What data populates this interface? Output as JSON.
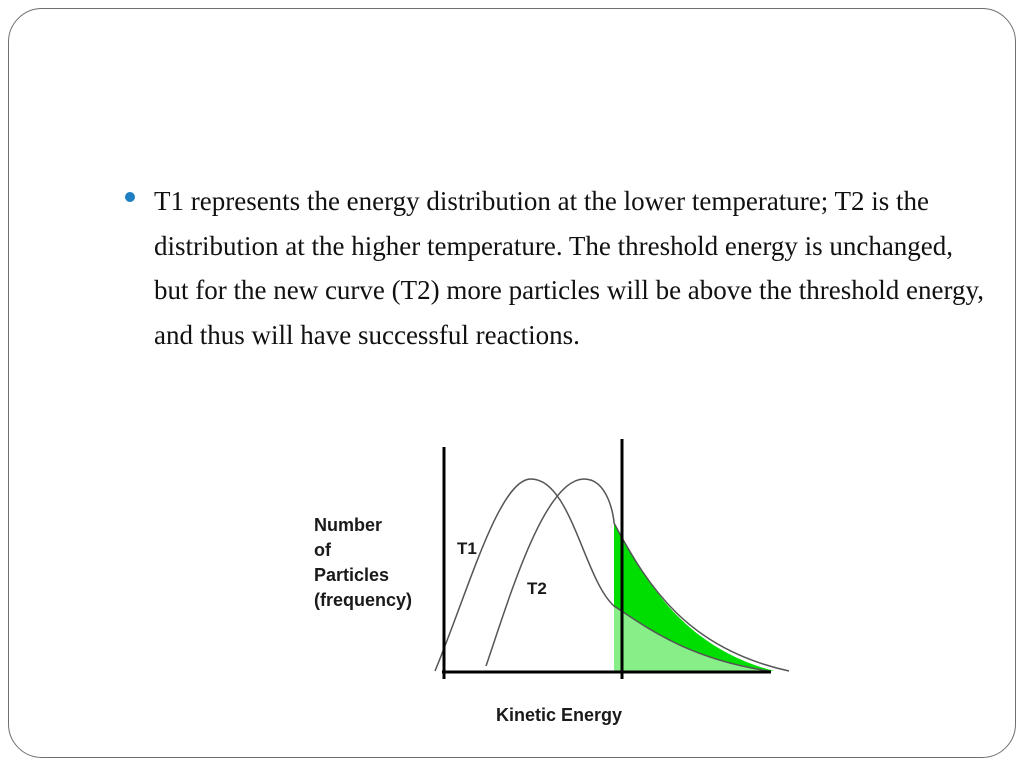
{
  "bullet": {
    "text": "T1 represents the energy distribution at the lower temperature; T2 is the distribution at the higher temperature. The threshold energy is unchanged, but for the new curve (T2) more particles will be above the threshold energy, and thus will have successful reactions.",
    "color": "#1f7fc2"
  },
  "diagram": {
    "ylabel_lines": [
      "Number",
      "of",
      "Particles",
      "(frequency)"
    ],
    "xlabel": "Kinetic Energy",
    "curve_t1_label": "T1",
    "curve_t2_label": "T2",
    "shade_colors": {
      "t2_area": "#00dd00",
      "t1_area": "#88ee88"
    }
  }
}
